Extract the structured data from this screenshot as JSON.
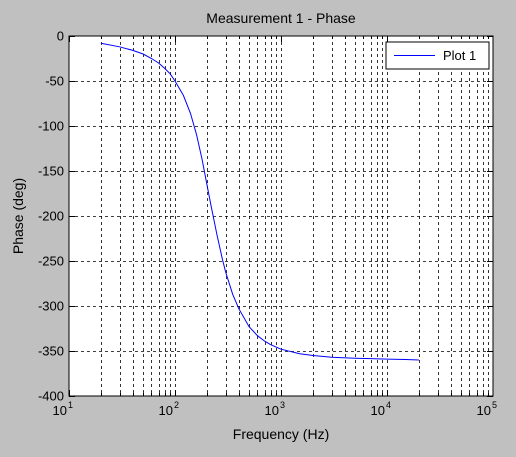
{
  "chart_data": {
    "type": "line",
    "title": "Measurement 1 - Phase",
    "xlabel": "Frequency (Hz)",
    "ylabel": "Phase (deg)",
    "xscale": "log",
    "xlim": [
      10,
      100000
    ],
    "ylim": [
      -400,
      0
    ],
    "grid": true,
    "legend_position": "top-right",
    "x_ticks": [
      {
        "value": 10,
        "base": "10",
        "exp": "1"
      },
      {
        "value": 100,
        "base": "10",
        "exp": "2"
      },
      {
        "value": 1000,
        "base": "10",
        "exp": "3"
      },
      {
        "value": 10000,
        "base": "10",
        "exp": "4"
      },
      {
        "value": 100000,
        "base": "10",
        "exp": "5"
      }
    ],
    "y_ticks": [
      0,
      -50,
      -100,
      -150,
      -200,
      -250,
      -300,
      -350,
      -400
    ],
    "y_tick_labels": [
      "0",
      "-50",
      "-100",
      "-150",
      "-200",
      "-250",
      "-300",
      "-350",
      "-400"
    ],
    "series": [
      {
        "name": "Plot 1",
        "color": "#0000ff",
        "x": [
          20,
          30,
          40,
          50,
          60,
          70,
          80,
          90,
          100,
          120,
          140,
          160,
          180,
          200,
          220,
          250,
          280,
          300,
          350,
          400,
          500,
          600,
          700,
          800,
          1000,
          1500,
          2000,
          3000,
          5000,
          7000,
          10000,
          15000,
          20000
        ],
        "y": [
          -8,
          -12,
          -16,
          -20,
          -25,
          -30,
          -36,
          -42,
          -50,
          -66,
          -86,
          -110,
          -137,
          -165,
          -190,
          -222,
          -248,
          -262,
          -287,
          -303,
          -323,
          -333,
          -339,
          -343,
          -348,
          -353,
          -355,
          -357,
          -358,
          -358.5,
          -359,
          -359.5,
          -360
        ]
      }
    ]
  },
  "colors": {
    "figure_background": "#c0c0c0",
    "axes_background": "#ffffff",
    "line": "#0000ff"
  }
}
